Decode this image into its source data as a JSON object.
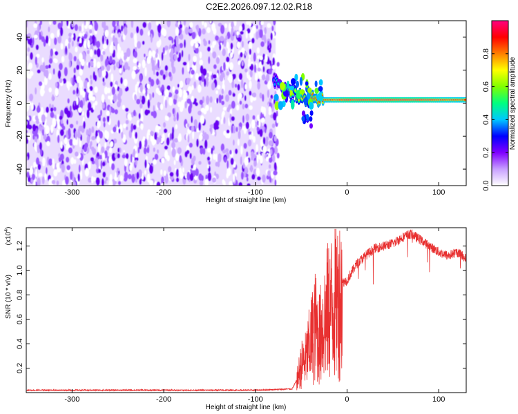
{
  "title": "C2E2.2026.097.12.02.R18",
  "chart_data": [
    {
      "type": "heatmap",
      "title": "C2E2.2026.097.12.02.R18",
      "xlabel": "Height of straight line (km)",
      "ylabel": "Frequency (Hz)",
      "xlim": [
        -350,
        130
      ],
      "ylim": [
        -50,
        50
      ],
      "x_ticks": [
        -300,
        -200,
        -100,
        0,
        100
      ],
      "x_tick_labels": [
        "-300",
        "-200",
        "-100",
        "0",
        "100"
      ],
      "y_ticks": [
        -40,
        -20,
        0,
        20,
        40
      ],
      "y_tick_labels": [
        "-40",
        "-20",
        "0",
        "20",
        "40"
      ],
      "noise_region_x": [
        -350,
        -78
      ],
      "signal_track": [
        {
          "x": -80,
          "y": 14,
          "amp": 0.35
        },
        {
          "x": -75,
          "y": 12,
          "amp": 0.45
        },
        {
          "x": -70,
          "y": 9,
          "amp": 0.5
        },
        {
          "x": -65,
          "y": 7,
          "amp": 0.55
        },
        {
          "x": -60,
          "y": 6,
          "amp": 0.6
        },
        {
          "x": -55,
          "y": 5,
          "amp": 0.65
        },
        {
          "x": -50,
          "y": 4,
          "amp": 0.7
        },
        {
          "x": -45,
          "y": 3,
          "amp": 0.75
        },
        {
          "x": -40,
          "y": 2.5,
          "amp": 0.8
        },
        {
          "x": -30,
          "y": 2,
          "amp": 0.85
        },
        {
          "x": -20,
          "y": 2,
          "amp": 0.9
        },
        {
          "x": -10,
          "y": 2,
          "amp": 0.95
        },
        {
          "x": 0,
          "y": 2,
          "amp": 1.0
        },
        {
          "x": 20,
          "y": 2,
          "amp": 1.0
        },
        {
          "x": 40,
          "y": 2,
          "amp": 1.0
        },
        {
          "x": 60,
          "y": 2,
          "amp": 1.0
        },
        {
          "x": 80,
          "y": 2,
          "amp": 1.0
        },
        {
          "x": 100,
          "y": 2,
          "amp": 0.95
        },
        {
          "x": 130,
          "y": 2,
          "amp": 0.9
        }
      ],
      "side_blob": {
        "x": [
          -48,
          -38
        ],
        "y": [
          -14,
          -6
        ],
        "amp": 0.3
      },
      "colorbar": {
        "label": "Normalized spectral amplitude",
        "range": [
          0.0,
          1.0
        ],
        "ticks": [
          0.0,
          0.2,
          0.4,
          0.6,
          0.8
        ],
        "tick_labels": [
          "0.0",
          "0.2",
          "0.4",
          "0.6",
          "0.8"
        ],
        "colormap": [
          "#ffffff",
          "#c8a0ff",
          "#8000ff",
          "#0000ff",
          "#00c8ff",
          "#00ff80",
          "#80ff00",
          "#ffff00",
          "#ff8000",
          "#ff0000",
          "#ff0080"
        ]
      }
    },
    {
      "type": "line",
      "title": "",
      "xlabel": "Height of straight line (km)",
      "ylabel": "SNR (10 * v/v)",
      "y_scale_label": "(x10",
      "y_scale_exponent": "4",
      "y_scale_suffix": ")",
      "xlim": [
        -350,
        130
      ],
      "ylim": [
        0,
        1.35
      ],
      "x_ticks": [
        -300,
        -200,
        -100,
        0,
        100
      ],
      "x_tick_labels": [
        "-300",
        "-200",
        "-100",
        "0",
        "100"
      ],
      "y_ticks": [
        0.2,
        0.4,
        0.6,
        0.8,
        1.0,
        1.2
      ],
      "y_tick_labels": [
        "0.2",
        "0.4",
        "0.6",
        "0.8",
        "1.0",
        "1.2"
      ],
      "line_color": "#e83030",
      "series": [
        {
          "name": "SNR",
          "x": [
            -350,
            -300,
            -250,
            -200,
            -150,
            -100,
            -60,
            -55,
            -50,
            -45,
            -40,
            -35,
            -30,
            -25,
            -20,
            -15,
            -10,
            -5,
            0,
            10,
            20,
            30,
            40,
            50,
            60,
            70,
            80,
            90,
            100,
            110,
            120,
            130
          ],
          "y": [
            0.02,
            0.02,
            0.02,
            0.02,
            0.02,
            0.02,
            0.03,
            0.1,
            0.25,
            0.3,
            0.45,
            0.6,
            0.5,
            0.65,
            0.75,
            0.8,
            0.85,
            0.9,
            0.92,
            1.05,
            1.12,
            1.18,
            1.2,
            1.22,
            1.27,
            1.3,
            1.25,
            1.2,
            1.15,
            1.12,
            1.15,
            1.1
          ]
        }
      ]
    }
  ]
}
